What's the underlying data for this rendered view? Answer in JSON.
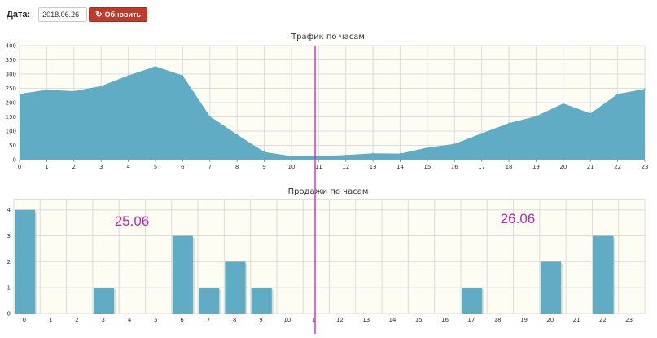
{
  "toolbar": {
    "date_label": "Дата:",
    "date_value": "2018.06.26",
    "refresh_label": "Обновить",
    "refresh_icon": "refresh-icon"
  },
  "colors": {
    "area_fill": "#5facc4",
    "bar_fill": "#5facc4",
    "cursor_line": "#c21fb5",
    "annotation": "#c21fb5",
    "button": "#c0392b",
    "grid": "#dcdcdc",
    "plot_bg": "#fdfdf4"
  },
  "chart_data": [
    {
      "type": "area",
      "title": "Трафик по часам",
      "x": [
        0,
        1,
        2,
        3,
        4,
        5,
        6,
        7,
        8,
        9,
        10,
        11,
        12,
        13,
        14,
        15,
        16,
        17,
        18,
        19,
        20,
        21,
        22,
        23
      ],
      "values": [
        230,
        245,
        240,
        258,
        295,
        327,
        295,
        152,
        88,
        27,
        12,
        12,
        16,
        22,
        21,
        42,
        55,
        92,
        128,
        152,
        197,
        162,
        230,
        248
      ],
      "x_tick_labels": [
        "0",
        "1",
        "2",
        "3",
        "4",
        "5",
        "6",
        "7",
        "8",
        "9",
        "10",
        "11",
        "12",
        "13",
        "14",
        "15",
        "16",
        "17",
        "18",
        "19",
        "20",
        "21",
        "22",
        "23"
      ],
      "y_ticks": [
        0,
        50,
        100,
        150,
        200,
        250,
        300,
        350,
        400
      ],
      "ylim": [
        0,
        400
      ],
      "grid": true
    },
    {
      "type": "bar",
      "title": "Продажи по часам",
      "x_tick_labels": [
        "0",
        "1",
        "2",
        "3",
        "4",
        "5",
        "6",
        "7",
        "8",
        "9",
        "10",
        "1",
        "12",
        "13",
        "14",
        "15",
        "16",
        "17",
        "18",
        "19",
        "20",
        "21",
        "22",
        "23"
      ],
      "values": [
        4,
        0,
        0,
        1,
        0,
        0,
        3,
        1,
        2,
        1,
        0,
        0,
        0,
        0,
        0,
        0,
        0,
        1,
        0,
        0,
        2,
        0,
        3,
        0
      ],
      "y_ticks": [
        0,
        1,
        2,
        3,
        4
      ],
      "ylim": [
        0,
        4.4
      ],
      "grid": true,
      "annotations": [
        "25.06",
        "26.06"
      ]
    }
  ]
}
